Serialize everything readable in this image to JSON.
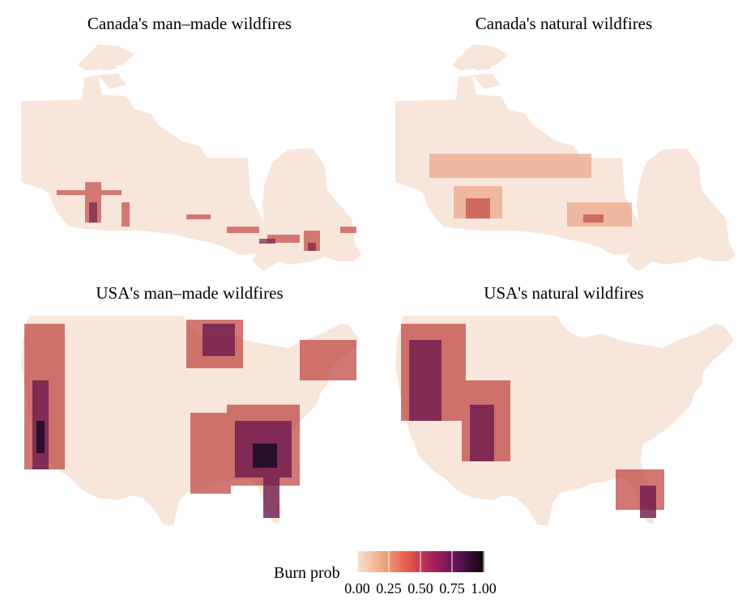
{
  "panels": [
    {
      "title": "Canada's man–made wildfires"
    },
    {
      "title": "Canada's natural wildfires"
    },
    {
      "title": "USA's man–made wildfires"
    },
    {
      "title": "USA's natural wildfires"
    }
  ],
  "legend": {
    "title": "Burn prob",
    "ticks": [
      "0.00",
      "0.25",
      "0.50",
      "0.75",
      "1.00"
    ],
    "colors": [
      "#f6e3d4",
      "#f1a880",
      "#e6584a",
      "#a3205a",
      "#5a1456",
      "#0b0405"
    ]
  },
  "colors": {
    "land_low": "#f8e6da",
    "hot_mid": "#d9493f",
    "hot_high": "#6e1a4f",
    "hot_max": "#1a0b24"
  }
}
